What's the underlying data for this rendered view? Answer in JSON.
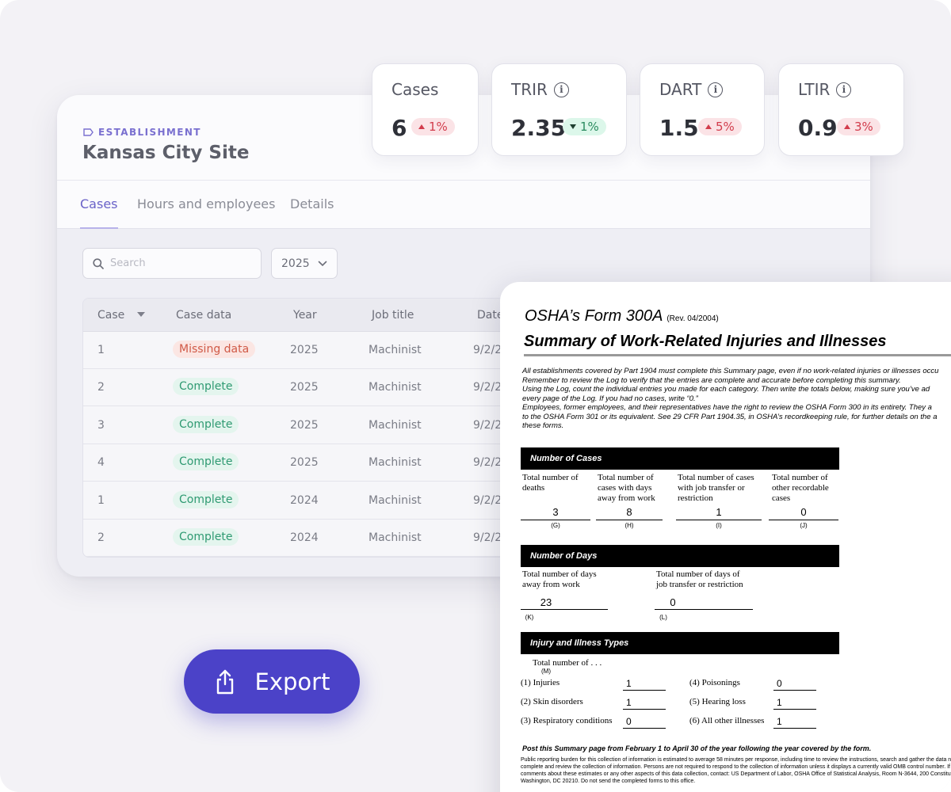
{
  "establishment": {
    "label": "ESTABLISHMENT",
    "name": "Kansas City Site"
  },
  "tabs": [
    "Cases",
    "Hours and employees",
    "Details"
  ],
  "filters": {
    "search_placeholder": "Search",
    "year": "2025"
  },
  "table": {
    "headers": [
      "Case",
      "Case data",
      "Year",
      "Job title",
      "Date"
    ],
    "rows": [
      {
        "case": "1",
        "status": "Missing data",
        "year": "2025",
        "job": "Machinist",
        "date": "9/2/2"
      },
      {
        "case": "2",
        "status": "Complete",
        "year": "2025",
        "job": "Machinist",
        "date": "9/2/2"
      },
      {
        "case": "3",
        "status": "Complete",
        "year": "2025",
        "job": "Machinist",
        "date": "9/2/2"
      },
      {
        "case": "4",
        "status": "Complete",
        "year": "2025",
        "job": "Machinist",
        "date": "9/2/2"
      },
      {
        "case": "1",
        "status": "Complete",
        "year": "2024",
        "job": "Machinist",
        "date": "9/2/2"
      },
      {
        "case": "2",
        "status": "Complete",
        "year": "2024",
        "job": "Machinist",
        "date": "9/2/2"
      }
    ]
  },
  "metrics": [
    {
      "label": "Cases",
      "value": "6",
      "change": "1%",
      "direction": "up",
      "info": false
    },
    {
      "label": "TRIR",
      "value": "2.35",
      "change": "1%",
      "direction": "down",
      "info": true
    },
    {
      "label": "DART",
      "value": "1.5",
      "change": "5%",
      "direction": "up",
      "info": true
    },
    {
      "label": "LTIR",
      "value": "0.9",
      "change": "3%",
      "direction": "up",
      "info": true
    }
  ],
  "export_label": "Export",
  "colors": {
    "accent": "#4b42c8",
    "complete": "#2f9a72",
    "missing": "#d05a47",
    "up_badge": "#d23c4c",
    "down_badge": "#2a8b5f"
  },
  "form": {
    "name": "OSHA’s Form 300A",
    "revision": "(Rev. 04/2004)",
    "title": "Summary of Work-Related Injuries and Illnesses",
    "intro": [
      "All establishments covered by Part 1904 must complete this Summary page, even if no work-related injuries or illnesses occu",
      "Remember to review the Log to verify that the entries are complete and accurate before completing this summary.",
      "   Using the Log, count the individual entries you made for each category. Then write the totals below, making sure you’ve ad",
      "every page of the Log. If you had no cases, write “0.”",
      "   Employees, former employees, and their representatives have the right to review the OSHA Form 300 in its entirety. They a",
      "to the OSHA Form 301 or its equivalent. See 29 CFR Part 1904.35, in OSHA’s recordkeeping rule, for further details on the a",
      "these forms."
    ],
    "cases_header": "Number of Cases",
    "cases": [
      {
        "label": "Total number of deaths",
        "value": "3",
        "letter": "(G)"
      },
      {
        "label": "Total number of cases with days away from work",
        "value": "8",
        "letter": "(H)"
      },
      {
        "label": "Total number of cases with job transfer or restriction",
        "value": "1",
        "letter": "(I)"
      },
      {
        "label": "Total number of other recordable cases",
        "value": "0",
        "letter": "(J)"
      }
    ],
    "days_header": "Number of Days",
    "days": [
      {
        "label": "Total number of days away from work",
        "value": "23",
        "letter": "(K)"
      },
      {
        "label": "Total number of days of job transfer or restriction",
        "value": "0",
        "letter": "(L)"
      }
    ],
    "types_header": "Injury and Illness Types",
    "types_total": "Total number of . . .",
    "types_letter": "(M)",
    "types": [
      {
        "label": "(1) Injuries",
        "value": "1"
      },
      {
        "label": "(2) Skin disorders",
        "value": "1"
      },
      {
        "label": "(3) Respiratory conditions",
        "value": "0"
      },
      {
        "label": "(4) Poisonings",
        "value": "0"
      },
      {
        "label": "(5) Hearing loss",
        "value": "1"
      },
      {
        "label": "(6) All other illnesses",
        "value": "1"
      }
    ],
    "post_notice": "Post this Summary page from February 1 to April 30 of the year following the year covered by the form.",
    "fine_print": [
      "Public reporting burden for this collection of information is estimated to average 58 minutes per response, including time to review the instructions, search and gather the data nee",
      "complete and review the collection of information. Persons are not required to respond to the collection of information unless it displays a currently valid OMB control number. If",
      "comments about these estimates or any other aspects of this data collection, contact: US Department of Labor, OSHA Office of Statistical Analysis, Room N-3644, 200 Constitut",
      "Washington, DC 20210. Do not send the completed forms to this office."
    ]
  }
}
